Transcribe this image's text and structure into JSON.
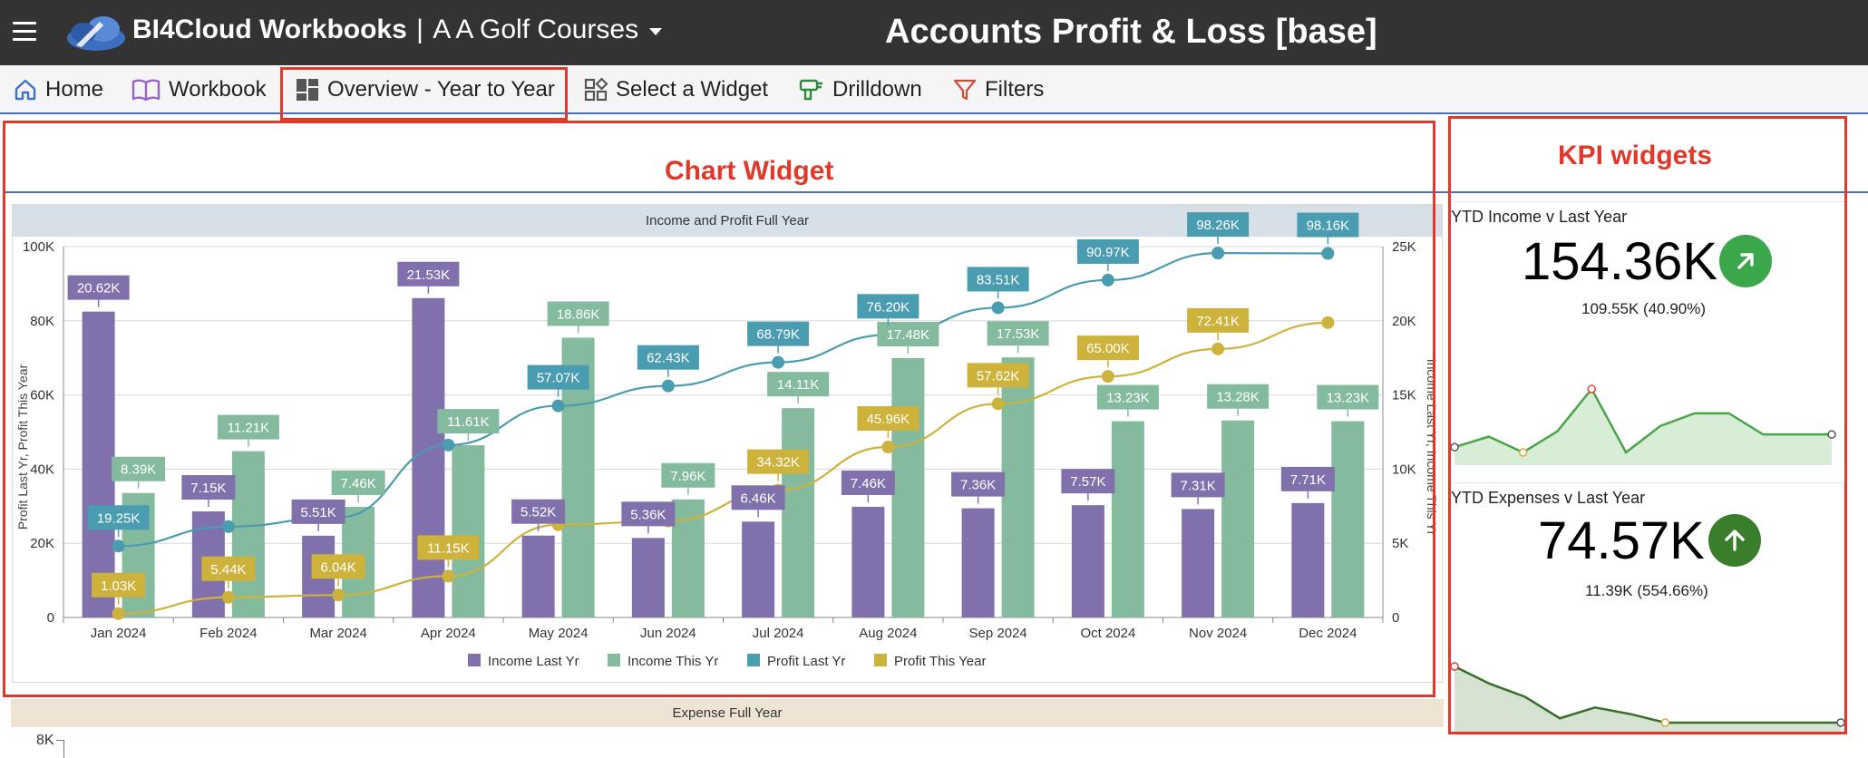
{
  "header": {
    "app_title": "BI4Cloud Workbooks",
    "separator": "|",
    "company": "A A Golf Courses",
    "report_title": "Accounts Profit & Loss [base]"
  },
  "nav": {
    "home": "Home",
    "workbook": "Workbook",
    "overview": "Overview - Year to Year",
    "select_widget": "Select a Widget",
    "drilldown": "Drilldown",
    "filters": "Filters"
  },
  "annotations": {
    "chart_widget": "Chart Widget",
    "kpi_widgets": "KPI widgets"
  },
  "colors": {
    "income_last": "#8070ab",
    "income_this": "#84bb9f",
    "profit_last": "#4a9cb0",
    "profit_this": "#cdb23b",
    "annotation_red": "#e0392b"
  },
  "chart_data": {
    "type": "bar",
    "title": "Income and Profit Full Year",
    "categories": [
      "Jan 2024",
      "Feb 2024",
      "Mar 2024",
      "Apr 2024",
      "May 2024",
      "Jun 2024",
      "Jul 2024",
      "Aug 2024",
      "Sep 2024",
      "Oct 2024",
      "Nov 2024",
      "Dec 2024"
    ],
    "ylabel_left": "Profit Last Yr, Profit This Year",
    "ylabel_right": "Income Last Yr, Income This Yr",
    "yleft_ticks": [
      "0",
      "20K",
      "40K",
      "60K",
      "80K",
      "100K"
    ],
    "yright_ticks": [
      "0",
      "5K",
      "10K",
      "15K",
      "20K",
      "25K"
    ],
    "ylim_left": [
      0,
      100000
    ],
    "ylim_right": [
      0,
      25000
    ],
    "series": [
      {
        "name": "Income Last Yr",
        "type": "bar",
        "axis": "right",
        "values": [
          20620,
          7150,
          5510,
          21530,
          5520,
          5360,
          6460,
          7460,
          7360,
          7570,
          7310,
          7710
        ],
        "labels": [
          "20.62K",
          "7.15K",
          "5.51K",
          "21.53K",
          "5.52K",
          "5.36K",
          "6.46K",
          "7.46K",
          "7.36K",
          "7.57K",
          "7.31K",
          "7.71K"
        ]
      },
      {
        "name": "Income This Yr",
        "type": "bar",
        "axis": "right",
        "values": [
          8390,
          11210,
          7460,
          11610,
          18860,
          7960,
          14110,
          17480,
          17530,
          13230,
          13280,
          13230
        ],
        "labels": [
          "8.39K",
          "11.21K",
          "7.46K",
          "11.61K",
          "18.86K",
          "7.96K",
          "14.11K",
          "17.48K",
          "17.53K",
          "13.23K",
          "13.28K",
          "13.23K"
        ]
      },
      {
        "name": "Profit Last Yr",
        "type": "line",
        "axis": "left",
        "values": [
          19250,
          24500,
          27000,
          46500,
          57070,
          62430,
          68790,
          76200,
          83510,
          90970,
          98260,
          98160
        ],
        "labels": [
          "19.25K",
          "",
          "",
          "",
          "57.07K",
          "62.43K",
          "68.79K",
          "76.20K",
          "83.51K",
          "90.97K",
          "98.26K",
          "98.16K"
        ]
      },
      {
        "name": "Profit This Year",
        "type": "line",
        "axis": "left",
        "values": [
          1030,
          5440,
          6040,
          11150,
          25000,
          26000,
          34320,
          45960,
          57620,
          65000,
          72410,
          79500
        ],
        "labels": [
          "1.03K",
          "5.44K",
          "6.04K",
          "11.15K",
          "",
          "",
          "34.32K",
          "45.96K",
          "57.62K",
          "65.00K",
          "72.41K",
          ""
        ]
      }
    ]
  },
  "expense_chart": {
    "title": "Expense Full Year",
    "first_tick": "8K"
  },
  "kpis": [
    {
      "title": "YTD Income v Last Year",
      "value": "154.36K",
      "sub": "109.55K (40.90%)",
      "badge_color": "#3ba64a",
      "icon": "arrow-up-right-icon",
      "sparkline": [
        40,
        50,
        35,
        55,
        95,
        35,
        60,
        72,
        72,
        52,
        52,
        52
      ]
    },
    {
      "title": "YTD Expenses v Last Year",
      "value": "74.57K",
      "sub": "11.39K (554.66%)",
      "badge_color": "#3a7d2a",
      "icon": "arrow-up-icon",
      "sparkline": [
        88,
        80,
        74,
        64,
        69,
        66,
        62,
        62,
        62,
        62,
        62,
        62
      ]
    }
  ]
}
